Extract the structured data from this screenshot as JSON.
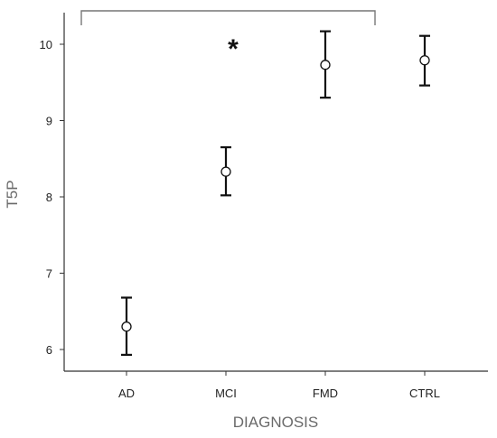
{
  "chart_data": {
    "type": "scatter",
    "xlabel": "DIAGNOSIS",
    "ylabel": "T5P",
    "categories": [
      "AD",
      "MCI",
      "FMD",
      "CTRL"
    ],
    "ylim": [
      5.7,
      10.45
    ],
    "yticks": [
      6,
      7,
      8,
      9,
      10
    ],
    "series": [
      {
        "points": [
          {
            "category": "AD",
            "mean": 6.3,
            "lower": 5.93,
            "upper": 6.68
          },
          {
            "category": "MCI",
            "mean": 8.33,
            "lower": 8.02,
            "upper": 8.65
          },
          {
            "category": "FMD",
            "mean": 9.73,
            "lower": 9.3,
            "upper": 10.17
          },
          {
            "category": "CTRL",
            "mean": 9.79,
            "lower": 9.46,
            "upper": 10.11
          }
        ]
      }
    ],
    "error_bars": true,
    "grid": false,
    "annotations": [
      {
        "text": "*",
        "category": "MCI",
        "note_type": "significance"
      }
    ],
    "significance_bracket": {
      "from": "AD",
      "to": "FMD"
    }
  }
}
